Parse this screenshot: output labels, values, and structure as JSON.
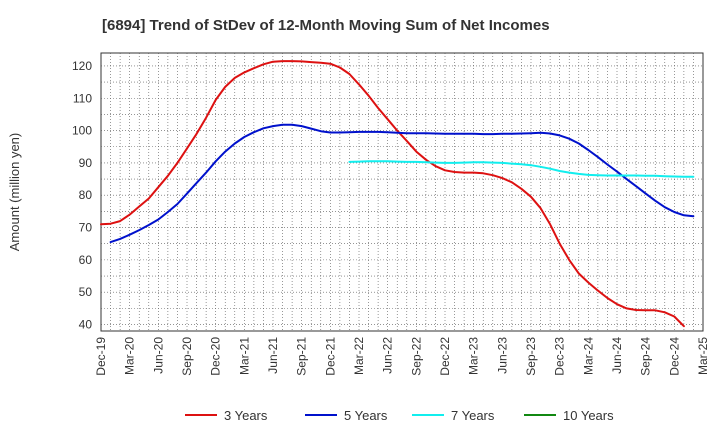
{
  "chart_data": {
    "type": "line",
    "title": "[6894]  Trend of StDev of 12-Month Moving Sum of Net Incomes",
    "ylabel": "Amount (million yen)",
    "xlabel": "",
    "ylim": [
      38,
      124
    ],
    "yticks": [
      40,
      50,
      60,
      70,
      80,
      90,
      100,
      110,
      120
    ],
    "xlim": [
      "Dec-19",
      "Mar-25"
    ],
    "categories": [
      "Dec-19",
      "Mar-20",
      "Jun-20",
      "Sep-20",
      "Dec-20",
      "Mar-21",
      "Jun-21",
      "Sep-21",
      "Dec-21",
      "Mar-22",
      "Jun-22",
      "Sep-22",
      "Dec-22",
      "Mar-23",
      "Jun-23",
      "Sep-23",
      "Dec-23",
      "Mar-24",
      "Jun-24",
      "Sep-24",
      "Dec-24",
      "Mar-25"
    ],
    "grid": true,
    "legend_position": "bottom",
    "series": [
      {
        "name": "3 Years",
        "color": "#dd1111",
        "points": [
          [
            "Dec-19",
            71.0
          ],
          [
            "Jan-20",
            71.2
          ],
          [
            "Feb-20",
            72.0
          ],
          [
            "Mar-20",
            74.0
          ],
          [
            "Apr-20",
            76.5
          ],
          [
            "May-20",
            79.0
          ],
          [
            "Jun-20",
            82.5
          ],
          [
            "Jul-20",
            86.0
          ],
          [
            "Aug-20",
            90.0
          ],
          [
            "Sep-20",
            94.5
          ],
          [
            "Oct-20",
            99.0
          ],
          [
            "Nov-20",
            104.0
          ],
          [
            "Dec-20",
            109.5
          ],
          [
            "Jan-21",
            113.5
          ],
          [
            "Feb-21",
            116.3
          ],
          [
            "Mar-21",
            118.0
          ],
          [
            "Apr-21",
            119.3
          ],
          [
            "May-21",
            120.5
          ],
          [
            "Jun-21",
            121.3
          ],
          [
            "Jul-21",
            121.5
          ],
          [
            "Aug-21",
            121.5
          ],
          [
            "Sep-21",
            121.4
          ],
          [
            "Oct-21",
            121.2
          ],
          [
            "Nov-21",
            121.0
          ],
          [
            "Dec-21",
            120.7
          ],
          [
            "Jan-22",
            119.5
          ],
          [
            "Feb-22",
            117.5
          ],
          [
            "Mar-22",
            114.3
          ],
          [
            "Apr-22",
            110.8
          ],
          [
            "May-22",
            107.0
          ],
          [
            "Jun-22",
            103.5
          ],
          [
            "Jul-22",
            100.0
          ],
          [
            "Aug-22",
            96.8
          ],
          [
            "Sep-22",
            93.5
          ],
          [
            "Oct-22",
            91.0
          ],
          [
            "Nov-22",
            89.0
          ],
          [
            "Dec-22",
            87.7
          ],
          [
            "Jan-23",
            87.2
          ],
          [
            "Feb-23",
            87.0
          ],
          [
            "Mar-23",
            87.0
          ],
          [
            "Apr-23",
            86.8
          ],
          [
            "May-23",
            86.2
          ],
          [
            "Jun-23",
            85.3
          ],
          [
            "Jul-23",
            84.0
          ],
          [
            "Aug-23",
            82.0
          ],
          [
            "Sep-23",
            79.5
          ],
          [
            "Oct-23",
            76.0
          ],
          [
            "Nov-23",
            71.0
          ],
          [
            "Dec-23",
            65.0
          ],
          [
            "Jan-24",
            60.0
          ],
          [
            "Feb-24",
            55.8
          ],
          [
            "Mar-24",
            53.0
          ],
          [
            "Apr-24",
            50.5
          ],
          [
            "May-24",
            48.2
          ],
          [
            "Jun-24",
            46.3
          ],
          [
            "Jul-24",
            45.0
          ],
          [
            "Aug-24",
            44.5
          ],
          [
            "Sep-24",
            44.4
          ],
          [
            "Oct-24",
            44.4
          ],
          [
            "Nov-24",
            43.8
          ],
          [
            "Dec-24",
            42.5
          ],
          [
            "Jan-25",
            39.5
          ]
        ]
      },
      {
        "name": "5 Years",
        "color": "#0011cc",
        "points": [
          [
            "Jan-20",
            65.5
          ],
          [
            "Feb-20",
            66.5
          ],
          [
            "Mar-20",
            67.8
          ],
          [
            "Apr-20",
            69.2
          ],
          [
            "May-20",
            70.8
          ],
          [
            "Jun-20",
            72.5
          ],
          [
            "Jul-20",
            74.8
          ],
          [
            "Aug-20",
            77.3
          ],
          [
            "Sep-20",
            80.5
          ],
          [
            "Oct-20",
            83.8
          ],
          [
            "Nov-20",
            87.0
          ],
          [
            "Dec-20",
            90.5
          ],
          [
            "Jan-21",
            93.5
          ],
          [
            "Feb-21",
            96.0
          ],
          [
            "Mar-21",
            98.0
          ],
          [
            "Apr-21",
            99.5
          ],
          [
            "May-21",
            100.7
          ],
          [
            "Jun-21",
            101.4
          ],
          [
            "Jul-21",
            101.8
          ],
          [
            "Aug-21",
            101.8
          ],
          [
            "Sep-21",
            101.4
          ],
          [
            "Oct-21",
            100.6
          ],
          [
            "Nov-21",
            99.8
          ],
          [
            "Dec-21",
            99.4
          ],
          [
            "Jan-22",
            99.4
          ],
          [
            "Feb-22",
            99.5
          ],
          [
            "Mar-22",
            99.6
          ],
          [
            "Apr-22",
            99.6
          ],
          [
            "May-22",
            99.6
          ],
          [
            "Jun-22",
            99.5
          ],
          [
            "Jul-22",
            99.3
          ],
          [
            "Aug-22",
            99.2
          ],
          [
            "Sep-22",
            99.2
          ],
          [
            "Oct-22",
            99.2
          ],
          [
            "Nov-22",
            99.1
          ],
          [
            "Dec-22",
            99.0
          ],
          [
            "Jan-23",
            99.0
          ],
          [
            "Feb-23",
            99.0
          ],
          [
            "Mar-23",
            99.0
          ],
          [
            "Apr-23",
            98.9
          ],
          [
            "May-23",
            98.9
          ],
          [
            "Jun-23",
            99.0
          ],
          [
            "Jul-23",
            99.0
          ],
          [
            "Aug-23",
            99.1
          ],
          [
            "Sep-23",
            99.2
          ],
          [
            "Oct-23",
            99.3
          ],
          [
            "Nov-23",
            99.1
          ],
          [
            "Dec-23",
            98.5
          ],
          [
            "Jan-24",
            97.5
          ],
          [
            "Feb-24",
            96.0
          ],
          [
            "Mar-24",
            94.0
          ],
          [
            "Apr-24",
            91.8
          ],
          [
            "May-24",
            89.5
          ],
          [
            "Jun-24",
            87.3
          ],
          [
            "Jul-24",
            85.0
          ],
          [
            "Aug-24",
            82.8
          ],
          [
            "Sep-24",
            80.5
          ],
          [
            "Oct-24",
            78.3
          ],
          [
            "Nov-24",
            76.3
          ],
          [
            "Dec-24",
            74.8
          ],
          [
            "Jan-25",
            73.8
          ],
          [
            "Feb-25",
            73.5
          ]
        ]
      },
      {
        "name": "7 Years",
        "color": "#11eeee",
        "points": [
          [
            "Feb-22",
            90.3
          ],
          [
            "Mar-22",
            90.4
          ],
          [
            "Apr-22",
            90.5
          ],
          [
            "May-22",
            90.5
          ],
          [
            "Jun-22",
            90.5
          ],
          [
            "Jul-22",
            90.4
          ],
          [
            "Aug-22",
            90.3
          ],
          [
            "Sep-22",
            90.3
          ],
          [
            "Oct-22",
            90.2
          ],
          [
            "Nov-22",
            90.1
          ],
          [
            "Dec-22",
            90.0
          ],
          [
            "Jan-23",
            90.0
          ],
          [
            "Feb-23",
            90.1
          ],
          [
            "Mar-23",
            90.2
          ],
          [
            "Apr-23",
            90.2
          ],
          [
            "May-23",
            90.1
          ],
          [
            "Jun-23",
            90.0
          ],
          [
            "Jul-23",
            89.8
          ],
          [
            "Aug-23",
            89.6
          ],
          [
            "Sep-23",
            89.3
          ],
          [
            "Oct-23",
            88.8
          ],
          [
            "Nov-23",
            88.2
          ],
          [
            "Dec-23",
            87.5
          ],
          [
            "Jan-24",
            87.0
          ],
          [
            "Feb-24",
            86.6
          ],
          [
            "Mar-24",
            86.3
          ],
          [
            "Apr-24",
            86.2
          ],
          [
            "May-24",
            86.1
          ],
          [
            "Jun-24",
            86.1
          ],
          [
            "Jul-24",
            86.1
          ],
          [
            "Aug-24",
            86.1
          ],
          [
            "Sep-24",
            86.0
          ],
          [
            "Oct-24",
            86.0
          ],
          [
            "Nov-24",
            85.9
          ],
          [
            "Dec-24",
            85.8
          ],
          [
            "Jan-25",
            85.7
          ],
          [
            "Feb-25",
            85.7
          ]
        ]
      },
      {
        "name": "10 Years",
        "color": "#118811",
        "points": []
      }
    ]
  }
}
